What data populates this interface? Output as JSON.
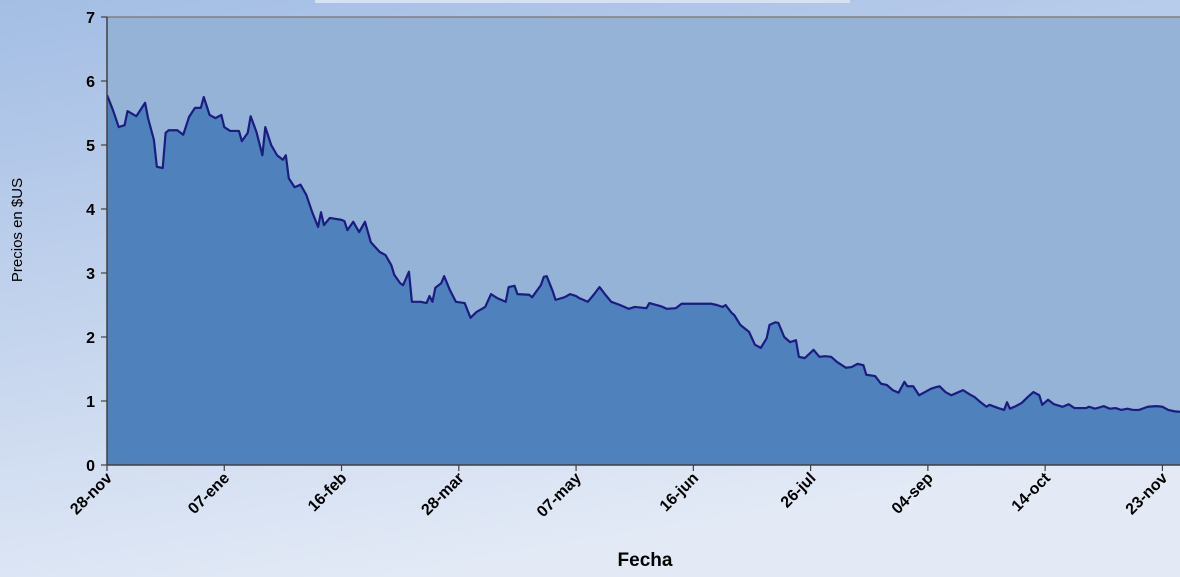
{
  "chart_data": {
    "type": "area",
    "x_label": "Fecha",
    "y_label": "Precios en $US",
    "xlim": [
      0,
      366
    ],
    "ylim": [
      0,
      7
    ],
    "yticks": [
      0,
      1,
      2,
      3,
      4,
      5,
      6,
      7
    ],
    "xticks": [
      {
        "value": 0,
        "label": "28-nov"
      },
      {
        "value": 40,
        "label": "07-ene"
      },
      {
        "value": 80,
        "label": "16-feb"
      },
      {
        "value": 120,
        "label": "28-mar"
      },
      {
        "value": 160,
        "label": "07-may"
      },
      {
        "value": 200,
        "label": "16-jun"
      },
      {
        "value": 240,
        "label": "26-jul"
      },
      {
        "value": 280,
        "label": "04-sep"
      },
      {
        "value": 320,
        "label": "14-oct"
      },
      {
        "value": 360,
        "label": "23-nov"
      }
    ],
    "series": [
      {
        "color": "#4f81bd",
        "line_color": "#1c1c80",
        "x": [
          0,
          2,
          4,
          6,
          7,
          10,
          11,
          13,
          14,
          16,
          17,
          19,
          20,
          21,
          24,
          26,
          28,
          30,
          32,
          33,
          35,
          37,
          39,
          40,
          42,
          45,
          46,
          48,
          49,
          51,
          53,
          54,
          56,
          58,
          60,
          61,
          62,
          64,
          66,
          68,
          70,
          72,
          73,
          74,
          76,
          80,
          81,
          82,
          84,
          86,
          88,
          90,
          93,
          95,
          97,
          98,
          100,
          101,
          103,
          104,
          107,
          109,
          110,
          111,
          112,
          114,
          115,
          117,
          119,
          122,
          124,
          126,
          129,
          131,
          133,
          136,
          137,
          139,
          140,
          144,
          145,
          148,
          149,
          150,
          152,
          153,
          156,
          158,
          160,
          161,
          164,
          166,
          168,
          170,
          172,
          175,
          178,
          180,
          184,
          185,
          189,
          191,
          194,
          196,
          199,
          202,
          206,
          208,
          210,
          211,
          213,
          214,
          216,
          219,
          221,
          223,
          225,
          226,
          228,
          229,
          231,
          233,
          235,
          236,
          238,
          241,
          243,
          245,
          247,
          249,
          252,
          254,
          256,
          258,
          259,
          262,
          264,
          266,
          268,
          270,
          272,
          273,
          275,
          277,
          279,
          281,
          283,
          284,
          286,
          288,
          290,
          292,
          294,
          296,
          298,
          300,
          301,
          304,
          306,
          307,
          308,
          310,
          312,
          314,
          316,
          318,
          319,
          321,
          323,
          326,
          328,
          330,
          334,
          335,
          337,
          340,
          342,
          344,
          346,
          348,
          350,
          352,
          355,
          358,
          360,
          362,
          364,
          366
        ],
        "values": [
          5.78,
          5.55,
          5.28,
          5.31,
          5.53,
          5.45,
          5.52,
          5.66,
          5.42,
          5.08,
          4.66,
          4.64,
          5.19,
          5.23,
          5.23,
          5.16,
          5.44,
          5.58,
          5.58,
          5.75,
          5.47,
          5.42,
          5.47,
          5.28,
          5.22,
          5.22,
          5.06,
          5.19,
          5.45,
          5.2,
          4.84,
          5.28,
          5.0,
          4.84,
          4.77,
          4.84,
          4.48,
          4.34,
          4.38,
          4.22,
          3.95,
          3.72,
          3.95,
          3.75,
          3.86,
          3.83,
          3.81,
          3.67,
          3.8,
          3.64,
          3.8,
          3.48,
          3.33,
          3.28,
          3.12,
          2.97,
          2.84,
          2.81,
          3.02,
          2.55,
          2.55,
          2.53,
          2.64,
          2.55,
          2.77,
          2.84,
          2.95,
          2.73,
          2.55,
          2.53,
          2.3,
          2.39,
          2.47,
          2.67,
          2.61,
          2.55,
          2.78,
          2.8,
          2.67,
          2.66,
          2.62,
          2.81,
          2.94,
          2.95,
          2.72,
          2.58,
          2.62,
          2.67,
          2.64,
          2.61,
          2.55,
          2.66,
          2.78,
          2.66,
          2.55,
          2.5,
          2.44,
          2.47,
          2.45,
          2.53,
          2.48,
          2.44,
          2.45,
          2.52,
          2.52,
          2.52,
          2.52,
          2.5,
          2.47,
          2.5,
          2.38,
          2.34,
          2.19,
          2.08,
          1.88,
          1.83,
          1.98,
          2.19,
          2.23,
          2.22,
          2.0,
          1.92,
          1.95,
          1.69,
          1.67,
          1.8,
          1.69,
          1.7,
          1.69,
          1.61,
          1.52,
          1.53,
          1.58,
          1.56,
          1.41,
          1.39,
          1.27,
          1.25,
          1.17,
          1.13,
          1.3,
          1.23,
          1.23,
          1.09,
          1.14,
          1.19,
          1.22,
          1.23,
          1.14,
          1.09,
          1.13,
          1.17,
          1.11,
          1.06,
          0.98,
          0.91,
          0.94,
          0.89,
          0.86,
          0.98,
          0.88,
          0.92,
          0.97,
          1.06,
          1.14,
          1.09,
          0.94,
          1.02,
          0.95,
          0.91,
          0.95,
          0.89,
          0.89,
          0.91,
          0.88,
          0.92,
          0.88,
          0.89,
          0.86,
          0.88,
          0.86,
          0.86,
          0.91,
          0.92,
          0.91,
          0.86,
          0.84,
          0.83
        ]
      }
    ]
  }
}
